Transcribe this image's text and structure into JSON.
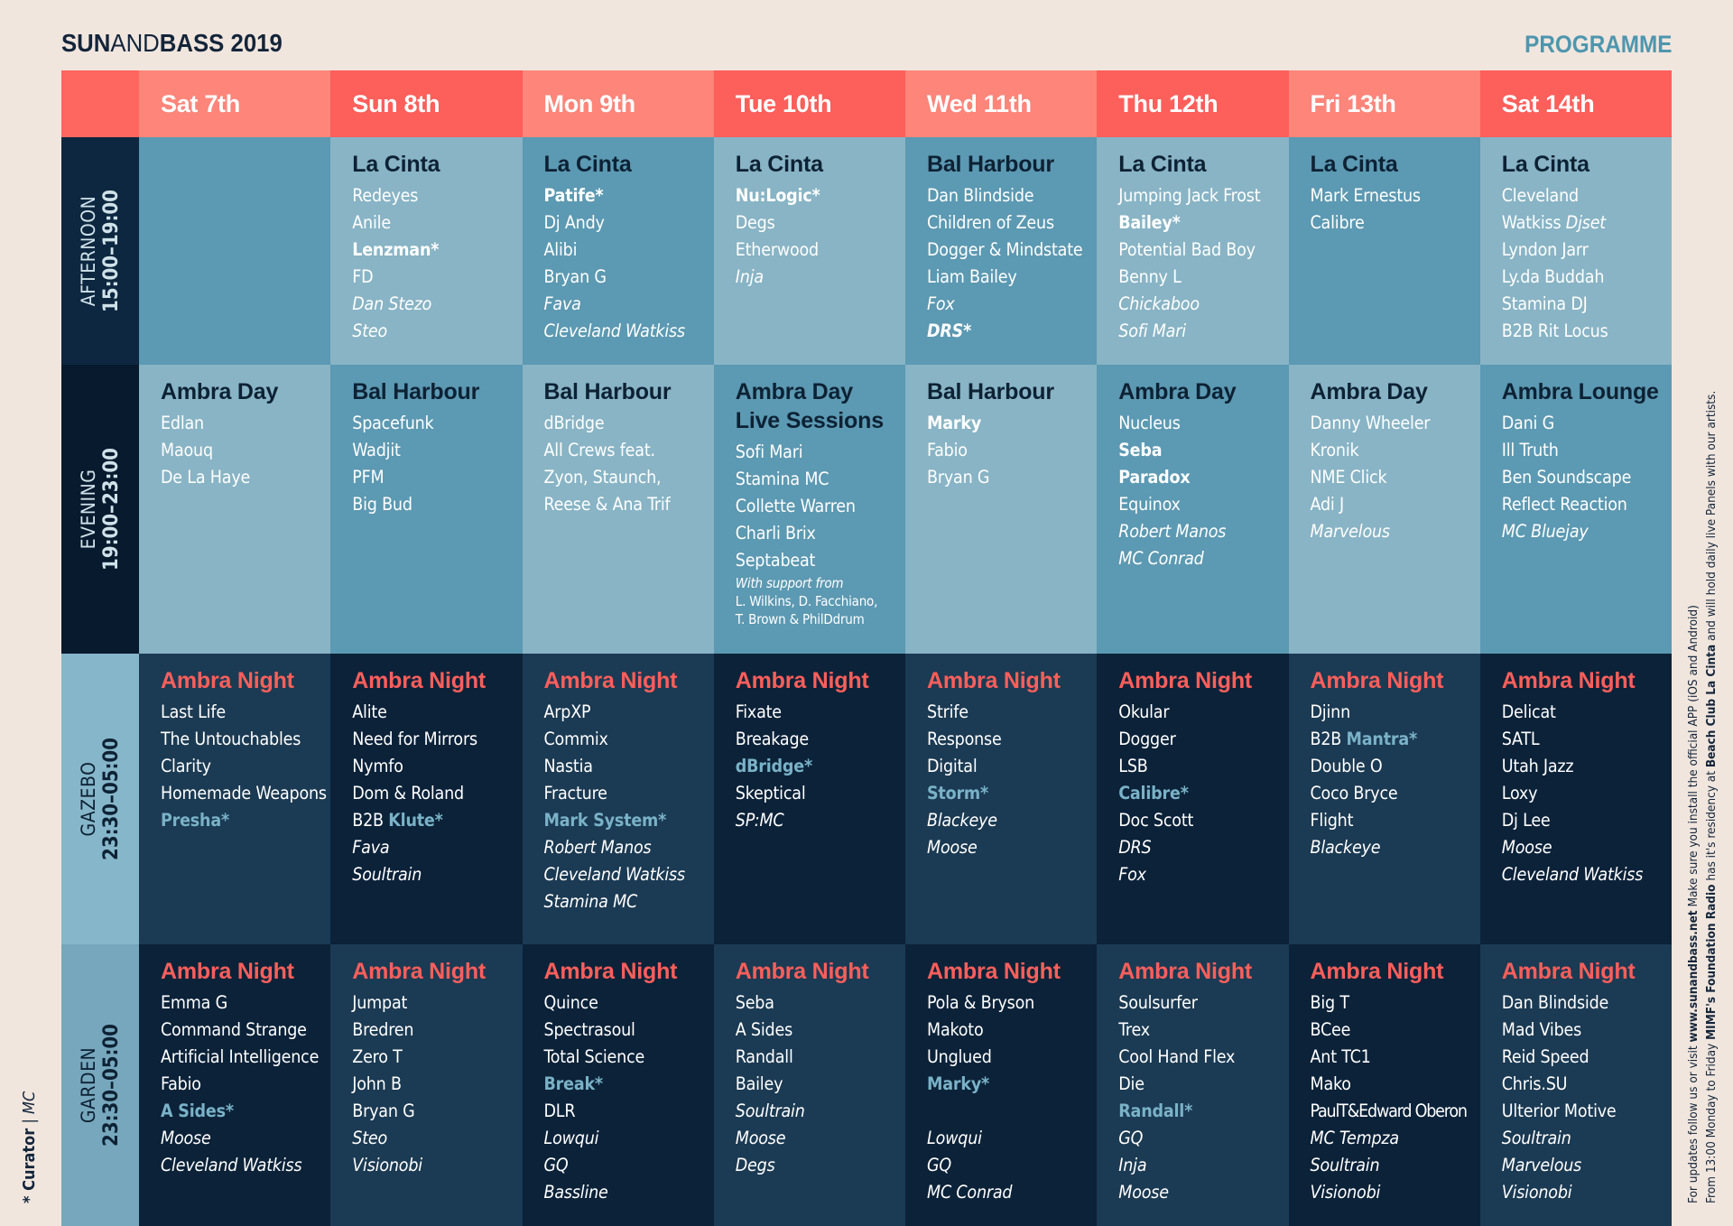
{
  "header": {
    "brand": {
      "sun": "SUN",
      "and": "AND",
      "bass": "BASS 2019"
    },
    "programme": "PROGRAMME"
  },
  "days": [
    "Sat 7th",
    "Sun 8th",
    "Mon 9th",
    "Tue 10th",
    "Wed 11th",
    "Thu 12th",
    "Fri 13th",
    "Sat 14th"
  ],
  "rows": [
    {
      "name": "AFTERNOON",
      "time": "15:00–19:00"
    },
    {
      "name": "EVENING",
      "time": "19:00–23:00"
    },
    {
      "name": "GAZEBO",
      "time": "23:30–05:00"
    },
    {
      "name": "GARDEN",
      "time": "23:30–05:00"
    }
  ],
  "afternoon": [
    {
      "venue": "",
      "acts": []
    },
    {
      "venue": "La Cinta",
      "acts": [
        {
          "t": "Redeyes"
        },
        {
          "t": "Anile"
        },
        {
          "t": "Lenzman*",
          "s": "b"
        },
        {
          "t": "FD"
        },
        {
          "t": "Dan Stezo",
          "s": "i"
        },
        {
          "t": "Steo",
          "s": "i"
        }
      ]
    },
    {
      "venue": "La Cinta",
      "acts": [
        {
          "t": "Patife*",
          "s": "b"
        },
        {
          "t": "Dj Andy"
        },
        {
          "t": "Alibi"
        },
        {
          "t": "Bryan G"
        },
        {
          "t": "Fava",
          "s": "i"
        },
        {
          "t": "Cleveland Watkiss",
          "s": "i"
        }
      ]
    },
    {
      "venue": "La Cinta",
      "acts": [
        {
          "t": "Nu:Logic*",
          "s": "b"
        },
        {
          "t": "Degs"
        },
        {
          "t": "Etherwood"
        },
        {
          "t": "Inja",
          "s": "i"
        }
      ]
    },
    {
      "venue": "Bal Harbour",
      "acts": [
        {
          "t": "Dan Blindside"
        },
        {
          "t": "Children of Zeus"
        },
        {
          "t": "Dogger & Mindstate"
        },
        {
          "t": "Liam Bailey"
        },
        {
          "t": "Fox",
          "s": "i"
        },
        {
          "t": "DRS*",
          "s": "bi"
        }
      ]
    },
    {
      "venue": "La Cinta",
      "acts": [
        {
          "t": "Jumping Jack Frost"
        },
        {
          "t": "Bailey*",
          "s": "b"
        },
        {
          "t": "Potential Bad Boy"
        },
        {
          "t": "Benny L"
        },
        {
          "t": "Chickaboo",
          "s": "i"
        },
        {
          "t": "Sofi Mari",
          "s": "i"
        }
      ]
    },
    {
      "venue": "La Cinta",
      "acts": [
        {
          "t": "Mark Ernestus"
        },
        {
          "t": "Calibre"
        }
      ]
    },
    {
      "venue": "La Cinta",
      "acts": [
        {
          "t": "Cleveland"
        },
        {
          "t": "Watkiss ",
          "t2": "Djset"
        },
        {
          "t": "Lyndon Jarr"
        },
        {
          "t": "Ly.da Buddah"
        },
        {
          "t": "Stamina DJ"
        },
        {
          "t": "B2B Rit Locus"
        }
      ]
    }
  ],
  "evening": [
    {
      "venue": "Ambra Day",
      "acts": [
        {
          "t": "Edlan"
        },
        {
          "t": "Maouq"
        },
        {
          "t": "De La Haye"
        }
      ]
    },
    {
      "venue": "Bal Harbour",
      "acts": [
        {
          "t": "Spacefunk"
        },
        {
          "t": "Wadjit"
        },
        {
          "t": "PFM"
        },
        {
          "t": "Big Bud"
        }
      ]
    },
    {
      "venue": "Bal Harbour",
      "acts": [
        {
          "t": "dBridge"
        },
        {
          "t": "All Crews feat."
        },
        {
          "t": "Zyon, Staunch,"
        },
        {
          "t": "Reese & Ana Trif"
        }
      ]
    },
    {
      "venue": "Ambra Day",
      "venue2": "Live Sessions",
      "acts": [
        {
          "t": "Sofi Mari"
        },
        {
          "t": "Stamina MC"
        },
        {
          "t": "Collette Warren"
        },
        {
          "t": "Charli Brix"
        },
        {
          "t": "Septabeat"
        },
        {
          "t": "With support from",
          "s": "sm"
        },
        {
          "t": "L. Wilkins, D. Facchiano,",
          "s": "smn"
        },
        {
          "t": "T. Brown & PhilDdrum",
          "s": "smn"
        }
      ]
    },
    {
      "venue": "Bal Harbour",
      "acts": [
        {
          "t": "Marky",
          "s": "b"
        },
        {
          "t": "Fabio"
        },
        {
          "t": "Bryan G"
        }
      ]
    },
    {
      "venue": "Ambra Day",
      "acts": [
        {
          "t": "Nucleus"
        },
        {
          "t": "Seba",
          "s": "b"
        },
        {
          "t": "Paradox",
          "s": "b"
        },
        {
          "t": "Equinox"
        },
        {
          "t": "Robert Manos",
          "s": "i"
        },
        {
          "t": "MC Conrad",
          "s": "i"
        }
      ]
    },
    {
      "venue": "Ambra Day",
      "acts": [
        {
          "t": "Danny Wheeler"
        },
        {
          "t": "Kronik"
        },
        {
          "t": "NME Click"
        },
        {
          "t": "Adi J"
        },
        {
          "t": "Marvelous",
          "s": "i"
        }
      ]
    },
    {
      "venue": "Ambra Lounge",
      "acts": [
        {
          "t": "Dani G"
        },
        {
          "t": "Ill Truth"
        },
        {
          "t": "Ben Soundscape"
        },
        {
          "t": "Reflect Reaction"
        },
        {
          "t": "MC Bluejay",
          "s": "i"
        }
      ]
    }
  ],
  "gazebo": [
    {
      "venue": "Ambra Night",
      "acts": [
        {
          "t": "Last Life"
        },
        {
          "t": "The Untouchables"
        },
        {
          "t": "Clarity"
        },
        {
          "t": "Homemade Weapons"
        },
        {
          "t": "Presha*",
          "s": "c"
        }
      ]
    },
    {
      "venue": "Ambra Night",
      "acts": [
        {
          "t": "Alite"
        },
        {
          "t": "Need for Mirrors"
        },
        {
          "t": "Nymfo"
        },
        {
          "t": "Dom & Roland"
        },
        {
          "t": "B2B ",
          "t2": "Klute*",
          "s2": "c"
        },
        {
          "t": "Fava",
          "s": "i"
        },
        {
          "t": "Soultrain",
          "s": "i"
        }
      ]
    },
    {
      "venue": "Ambra Night",
      "acts": [
        {
          "t": "ArpXP"
        },
        {
          "t": "Commix"
        },
        {
          "t": "Nastia"
        },
        {
          "t": "Fracture"
        },
        {
          "t": "Mark System*",
          "s": "c"
        },
        {
          "t": "Robert Manos",
          "s": "i"
        },
        {
          "t": "Cleveland Watkiss",
          "s": "i"
        },
        {
          "t": "Stamina MC",
          "s": "i"
        }
      ]
    },
    {
      "venue": "Ambra Night",
      "acts": [
        {
          "t": "Fixate"
        },
        {
          "t": "Breakage"
        },
        {
          "t": "dBridge*",
          "s": "c"
        },
        {
          "t": "Skeptical"
        },
        {
          "t": "SP:MC",
          "s": "i"
        }
      ]
    },
    {
      "venue": "Ambra Night",
      "acts": [
        {
          "t": "Strife"
        },
        {
          "t": "Response"
        },
        {
          "t": "Digital"
        },
        {
          "t": "Storm*",
          "s": "c"
        },
        {
          "t": "Blackeye",
          "s": "i"
        },
        {
          "t": "Moose",
          "s": "i"
        }
      ]
    },
    {
      "venue": "Ambra Night",
      "acts": [
        {
          "t": "Okular"
        },
        {
          "t": "Dogger"
        },
        {
          "t": "LSB"
        },
        {
          "t": "Calibre*",
          "s": "c"
        },
        {
          "t": "Doc Scott"
        },
        {
          "t": "DRS",
          "s": "i"
        },
        {
          "t": "Fox",
          "s": "i"
        }
      ]
    },
    {
      "venue": "Ambra Night",
      "acts": [
        {
          "t": "Djinn"
        },
        {
          "t": "B2B ",
          "t2": "Mantra*",
          "s2": "c"
        },
        {
          "t": "Double O"
        },
        {
          "t": "Coco Bryce"
        },
        {
          "t": "Flight"
        },
        {
          "t": "Blackeye",
          "s": "i"
        }
      ]
    },
    {
      "venue": "Ambra Night",
      "acts": [
        {
          "t": "Delicat"
        },
        {
          "t": "SATL"
        },
        {
          "t": "Utah Jazz"
        },
        {
          "t": "Loxy"
        },
        {
          "t": "Dj Lee"
        },
        {
          "t": "Moose",
          "s": "i"
        },
        {
          "t": "Cleveland Watkiss",
          "s": "i"
        }
      ]
    }
  ],
  "garden": [
    {
      "venue": "Ambra Night",
      "acts": [
        {
          "t": "Emma G"
        },
        {
          "t": "Command Strange"
        },
        {
          "t": "Artificial Intelligence"
        },
        {
          "t": "Fabio"
        },
        {
          "t": "A Sides*",
          "s": "c"
        },
        {
          "t": "Moose",
          "s": "i"
        },
        {
          "t": "Cleveland Watkiss",
          "s": "i"
        }
      ]
    },
    {
      "venue": "Ambra Night",
      "acts": [
        {
          "t": "Jumpat"
        },
        {
          "t": "Bredren"
        },
        {
          "t": "Zero T"
        },
        {
          "t": "John B"
        },
        {
          "t": "Bryan G"
        },
        {
          "t": "Steo",
          "s": "i"
        },
        {
          "t": "Visionobi",
          "s": "i"
        }
      ]
    },
    {
      "venue": "Ambra Night",
      "acts": [
        {
          "t": "Quince"
        },
        {
          "t": "Spectrasoul"
        },
        {
          "t": "Total Science"
        },
        {
          "t": "Break*",
          "s": "c"
        },
        {
          "t": "DLR"
        },
        {
          "t": "Lowqui",
          "s": "i"
        },
        {
          "t": "GQ",
          "s": "i"
        },
        {
          "t": "Bassline",
          "s": "i"
        }
      ]
    },
    {
      "venue": "Ambra Night",
      "acts": [
        {
          "t": "Seba"
        },
        {
          "t": "A Sides"
        },
        {
          "t": "Randall"
        },
        {
          "t": "Bailey"
        },
        {
          "t": "Soultrain",
          "s": "i"
        },
        {
          "t": "Moose",
          "s": "i"
        },
        {
          "t": "Degs",
          "s": "i"
        }
      ]
    },
    {
      "venue": "Ambra Night",
      "acts": [
        {
          "t": "Pola & Bryson"
        },
        {
          "t": "Makoto"
        },
        {
          "t": "Unglued"
        },
        {
          "t": "Marky*",
          "s": "c"
        },
        {
          "t": "",
          "s": "sp"
        },
        {
          "t": "Lowqui",
          "s": "i"
        },
        {
          "t": "GQ",
          "s": "i"
        },
        {
          "t": "MC Conrad",
          "s": "i"
        }
      ]
    },
    {
      "venue": "Ambra Night",
      "acts": [
        {
          "t": "Soulsurfer"
        },
        {
          "t": "Trex"
        },
        {
          "t": "Cool Hand Flex"
        },
        {
          "t": "Die"
        },
        {
          "t": "Randall*",
          "s": "c"
        },
        {
          "t": "GQ",
          "s": "i"
        },
        {
          "t": "Inja",
          "s": "i"
        },
        {
          "t": "Moose",
          "s": "i"
        }
      ]
    },
    {
      "venue": "Ambra Night",
      "acts": [
        {
          "t": "Big T"
        },
        {
          "t": "BCee"
        },
        {
          "t": "Ant TC1"
        },
        {
          "t": "Mako"
        },
        {
          "t": "PaulT&Edward Oberon",
          "s": "tight"
        },
        {
          "t": "MC Tempza",
          "s": "i"
        },
        {
          "t": "Soultrain",
          "s": "i"
        },
        {
          "t": "Visionobi",
          "s": "i"
        }
      ]
    },
    {
      "venue": "Ambra Night",
      "acts": [
        {
          "t": "Dan Blindside"
        },
        {
          "t": "Mad Vibes"
        },
        {
          "t": "Reid Speed"
        },
        {
          "t": "Chris.SU"
        },
        {
          "t": "Ulterior Motive"
        },
        {
          "t": "Soultrain",
          "s": "i"
        },
        {
          "t": "Marvelous",
          "s": "i"
        },
        {
          "t": "Visionobi",
          "s": "i"
        }
      ]
    }
  ],
  "footnote": {
    "curator": "* Curator",
    "sep": " | ",
    "mc": "MC"
  },
  "sidenote": {
    "line1_pre": "For updates follow us or visit ",
    "line1_url": "www.sunandbass.net",
    "line1_post": " Make sure you install the official APP (iOS and Android)",
    "line2_pre": "From 13:00 Monday to Friday ",
    "line2_b1": "MIMF's Foundation Radio",
    "line2_mid": " has it's residency at ",
    "line2_b2": "Beach Club La Cinta",
    "line2_post": " and will hold daily live Panels  with our artists."
  }
}
